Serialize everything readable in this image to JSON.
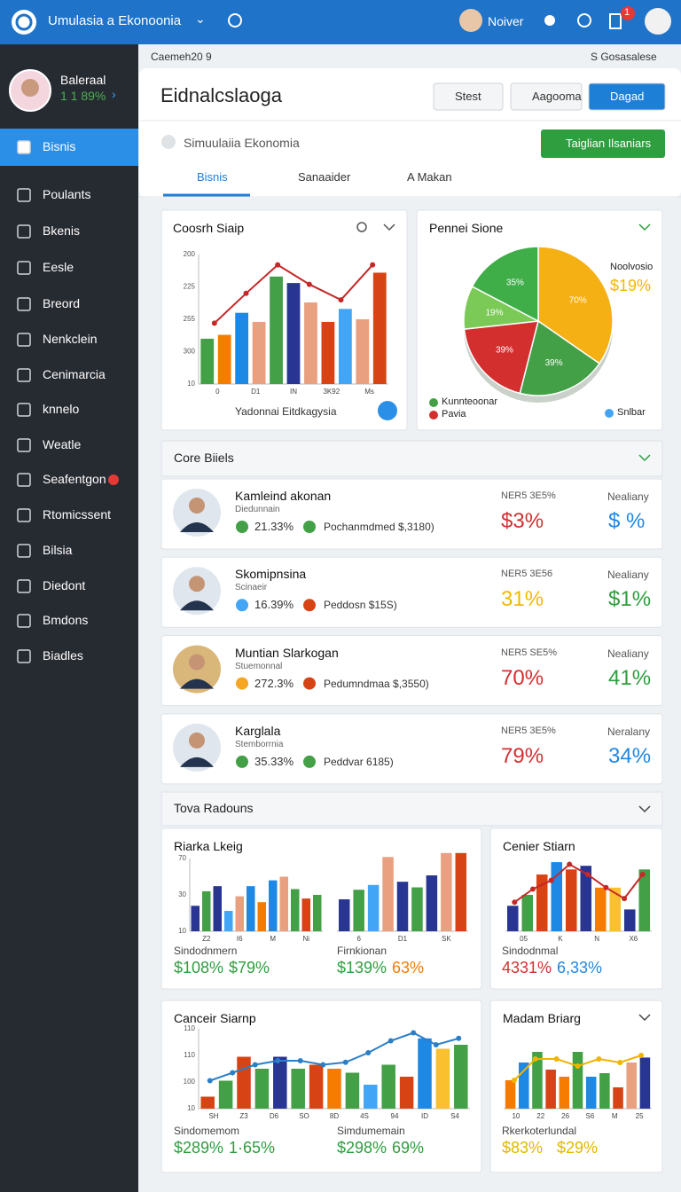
{
  "header": {
    "app_title": "Umulasia a Ekonoonia",
    "user_name": "Noiver",
    "badge": "1"
  },
  "sidebar": {
    "profile_name": "Baleraal",
    "profile_stat": "1 1 89%",
    "items": [
      {
        "label": "Bisnis",
        "active": true
      },
      {
        "label": "Poulants"
      },
      {
        "label": "Bkenis"
      },
      {
        "label": "Eesle"
      },
      {
        "label": "Breord"
      },
      {
        "label": "Nenkclein"
      },
      {
        "label": "Cenimarcia"
      },
      {
        "label": "knnelo"
      },
      {
        "label": "Weatle"
      },
      {
        "label": "Seafentgon",
        "badge": true
      },
      {
        "label": "Rtomicssent"
      },
      {
        "label": "Bilsia"
      },
      {
        "label": "Diedont"
      },
      {
        "label": "Bmdons"
      },
      {
        "label": "Biadles"
      }
    ]
  },
  "subheader": {
    "left": "Caemeh20 9",
    "right": "S Gosasalese"
  },
  "panel": {
    "title": "Eidnalcslaoga",
    "buttons": [
      "Stest",
      "Aagooma",
      "Dagad"
    ],
    "breadcrumb": "Simuulaiia Ekonomia",
    "action": "Taiglian Ilsaniars",
    "tabs": [
      "Bisnis",
      "Sanaaider",
      "A Makan"
    ]
  },
  "overview": {
    "bar_chart": {
      "type": "bar",
      "title": "Coosrh Siaip",
      "ylim": [
        0,
        100
      ],
      "ylabels": [
        "200",
        "225",
        "255",
        "300",
        "10"
      ],
      "xlabels": [
        "0",
        "D1",
        "IN",
        "3K92",
        "Ms"
      ],
      "caption": "Yadonnai Eitdkagysia",
      "values": [
        35,
        38,
        55,
        48,
        83,
        78,
        63,
        48,
        58,
        50,
        86
      ],
      "colors": [
        "#43a047",
        "#f57c00",
        "#1e88e5",
        "#e8a080",
        "#43a047",
        "#283593",
        "#e8a080",
        "#d84315",
        "#42a5f5",
        "#e8a080",
        "#d84315"
      ],
      "line": [
        47,
        70,
        92,
        77,
        65,
        92
      ],
      "line_color": "#c62828"
    },
    "pie_chart": {
      "type": "pie",
      "title": "Pennei Sione",
      "side_label": "Noolvosio",
      "side_value": "$19%",
      "values": [
        70,
        39,
        39,
        19,
        35
      ],
      "value_labels": [
        "70%",
        "39%",
        "39%",
        "19%",
        "35%"
      ],
      "colors": [
        "#f5b014",
        "#43a047",
        "#d32f2f",
        "#7bc957",
        "#3fae49"
      ],
      "legend": [
        {
          "name": "Kunnteoonar",
          "color": "#43a047"
        },
        {
          "name": "Pavia",
          "color": "#d32f2f"
        },
        {
          "name": "Snlbar",
          "color": "#42a5f5"
        }
      ]
    }
  },
  "core": {
    "title": "Core Biiels",
    "rows": [
      {
        "name": "Kamleind akonan",
        "sub": "Diedunnain",
        "stat1": "21.33%",
        "stat1_color": "#43a047",
        "stat2": "Pochanmdmed $,3180)",
        "stat2_color": "#43a047",
        "col1_label": "NER5 3E5%",
        "col1_value": "$3%",
        "col1_color": "#d32f2f",
        "col2_label": "Nealiany",
        "col2_value": "$ %",
        "col2_color": "#1e88e5"
      },
      {
        "name": "Skomipnsina",
        "sub": "Scinaeir",
        "stat1": "16.39%",
        "stat1_color": "#42a5f5",
        "stat2": "Peddosn $15S)",
        "stat2_color": "#d84315",
        "col1_label": "NER5 3E56",
        "col1_value": "31%",
        "col1_color": "#f2b705",
        "col2_label": "Nealiany",
        "col2_value": "$1%",
        "col2_color": "#2e9e3e"
      },
      {
        "name": "Muntian Slarkogan",
        "sub": "Stuemonnal",
        "stat1": "272.3%",
        "stat1_color": "#f5a623",
        "stat2": "Pedumndmaa $,3550)",
        "stat2_color": "#d84315",
        "col1_label": "NER5 SE5%",
        "col1_value": "70%",
        "col1_color": "#d32f2f",
        "col2_label": "Nealiany",
        "col2_value": "41%",
        "col2_color": "#2e9e3e"
      },
      {
        "name": "Karglala",
        "sub": "Stemborrnia",
        "stat1": "35.33%",
        "stat1_color": "#43a047",
        "stat2": "Peddvar 6185)",
        "stat2_color": "#43a047",
        "col1_label": "NER5 3E5%",
        "col1_value": "79%",
        "col1_color": "#d32f2f",
        "col2_label": "Neralany",
        "col2_value": "34%",
        "col2_color": "#1e88e5"
      }
    ]
  },
  "reports": {
    "title": "Tova Radouns",
    "cards": [
      {
        "title": "Riarka Lkeig",
        "charts": [
          {
            "type": "bar",
            "ylim": [
              0,
              100
            ],
            "ylabels": [
              "70",
              "30",
              "10"
            ],
            "xlabels": [
              "Z2",
              "I6",
              "M",
              "Ni"
            ],
            "values": [
              35,
              55,
              62,
              28,
              48,
              62,
              40,
              70,
              75,
              58,
              45,
              50
            ],
            "colors": [
              "#283593",
              "#43a047",
              "#283593",
              "#42a5f5",
              "#e8a080",
              "#1e88e5",
              "#f57c00",
              "#1e88e5",
              "#e8a080",
              "#43a047",
              "#d84315",
              "#43a047"
            ]
          },
          {
            "type": "bar",
            "ylim": [
              0,
              100
            ],
            "xlabels": [
              "6",
              "D1",
              "SK"
            ],
            "values": [
              40,
              52,
              58,
              93,
              62,
              55,
              70,
              98,
              98
            ],
            "colors": [
              "#283593",
              "#43a047",
              "#42a5f5",
              "#e8a080",
              "#283593",
              "#43a047",
              "#283593",
              "#e8a080",
              "#d84315"
            ]
          }
        ],
        "footers": [
          {
            "label": "Sindodnmern",
            "values": [
              "$108%",
              "$79%"
            ],
            "colors": [
              "#2e9e3e",
              "#2e9e3e"
            ]
          },
          {
            "label": "Firnkionan",
            "values": [
              "$139%",
              "63%"
            ],
            "colors": [
              "#2e9e3e",
              "#f57c00"
            ]
          }
        ]
      },
      {
        "title": "Cenier Stiarn",
        "charts": [
          {
            "type": "bar",
            "ylim": [
              0,
              100
            ],
            "xlabels": [
              "05",
              "K",
              "N",
              "X6"
            ],
            "values": [
              35,
              50,
              78,
              95,
              85,
              90,
              60,
              60,
              30,
              85
            ],
            "colors": [
              "#283593",
              "#43a047",
              "#d84315",
              "#1e88e5",
              "#d84315",
              "#283593",
              "#f57c00",
              "#fbc02d",
              "#283593",
              "#43a047"
            ],
            "line": [
              40,
              58,
              70,
              92,
              78,
              60,
              45,
              78
            ],
            "line_color": "#c62828"
          }
        ],
        "footers": [
          {
            "label": "Sindodnmal",
            "values": [
              "4331%",
              "6,33%"
            ],
            "colors": [
              "#d32f2f",
              "#1e88e5"
            ]
          }
        ]
      },
      {
        "title": "Canceir Siarnp",
        "charts": [
          {
            "type": "bar",
            "ylim": [
              0,
              100
            ],
            "ylabels": [
              "110",
              "110",
              "100",
              "10"
            ],
            "xlabels": [
              "SH",
              "Z3",
              "D6",
              "SO",
              "8D",
              "4S",
              "94",
              "ID",
              "S4"
            ],
            "values": [
              15,
              35,
              65,
              50,
              65,
              50,
              55,
              50,
              45,
              30,
              55,
              40,
              88,
              75,
              80
            ],
            "colors": [
              "#d84315",
              "#43a047",
              "#d84315",
              "#43a047",
              "#283593",
              "#43a047",
              "#d84315",
              "#f57c00",
              "#43a047",
              "#42a5f5",
              "#43a047",
              "#d84315",
              "#1e88e5",
              "#fbc02d",
              "#43a047"
            ],
            "line": [
              35,
              45,
              55,
              60,
              60,
              55,
              58,
              70,
              85,
              95,
              80,
              88
            ],
            "line_color": "#2a7fc9"
          }
        ],
        "footers": [
          {
            "label": "Sindomemom",
            "values": [
              "$289%",
              "1·65%"
            ],
            "colors": [
              "#2e9e3e",
              "#2e9e3e"
            ]
          },
          {
            "label": "Simdumemain",
            "values": [
              "$298%",
              "69%"
            ],
            "colors": [
              "#2e9e3e",
              "#2e9e3e"
            ]
          }
        ]
      },
      {
        "title": "Madam Briarg",
        "charts": [
          {
            "type": "bar",
            "ylim": [
              0,
              100
            ],
            "xlabels": [
              "10",
              "22",
              "26",
              "S6",
              "M",
              "25"
            ],
            "values": [
              40,
              65,
              80,
              55,
              45,
              80,
              45,
              50,
              30,
              65,
              72
            ],
            "colors": [
              "#f57c00",
              "#1e88e5",
              "#43a047",
              "#d84315",
              "#f57c00",
              "#43a047",
              "#1e88e5",
              "#43a047",
              "#d84315",
              "#e8a080",
              "#283593"
            ],
            "line": [
              40,
              70,
              70,
              60,
              70,
              65,
              75
            ],
            "line_color": "#f0b400"
          }
        ],
        "footers": [
          {
            "label": "Rkerkoterlundal",
            "values": [
              "$83%",
              "$29%"
            ],
            "colors": [
              "#e0b800",
              "#e0b800"
            ]
          }
        ]
      }
    ]
  }
}
